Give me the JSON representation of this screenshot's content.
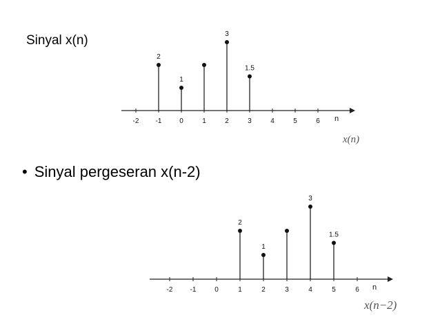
{
  "slide": {
    "title": "Sinyal x(n)",
    "bullet_symbol": "•",
    "bullet_text": "Sinyal pergeseran x(n-2)"
  },
  "chart_data": [
    {
      "type": "stem",
      "caption": "x(n)",
      "xlabel": "n",
      "xticks": [
        -2,
        -1,
        0,
        1,
        2,
        3,
        4,
        5,
        6
      ],
      "points": [
        {
          "n": -1,
          "value": 2,
          "label": "2"
        },
        {
          "n": 0,
          "value": 1,
          "label": "1"
        },
        {
          "n": 1,
          "value": 2,
          "label": ""
        },
        {
          "n": 2,
          "value": 3,
          "label": "3"
        },
        {
          "n": 3,
          "value": 1.5,
          "label": "1.5"
        }
      ]
    },
    {
      "type": "stem",
      "caption": "x(n−2)",
      "xlabel": "n",
      "xticks": [
        -2,
        -1,
        0,
        1,
        2,
        3,
        4,
        5,
        6
      ],
      "points": [
        {
          "n": 1,
          "value": 2,
          "label": "2"
        },
        {
          "n": 2,
          "value": 1,
          "label": "1"
        },
        {
          "n": 3,
          "value": 2,
          "label": ""
        },
        {
          "n": 4,
          "value": 3,
          "label": "3"
        },
        {
          "n": 5,
          "value": 1.5,
          "label": "1.5"
        }
      ]
    }
  ]
}
